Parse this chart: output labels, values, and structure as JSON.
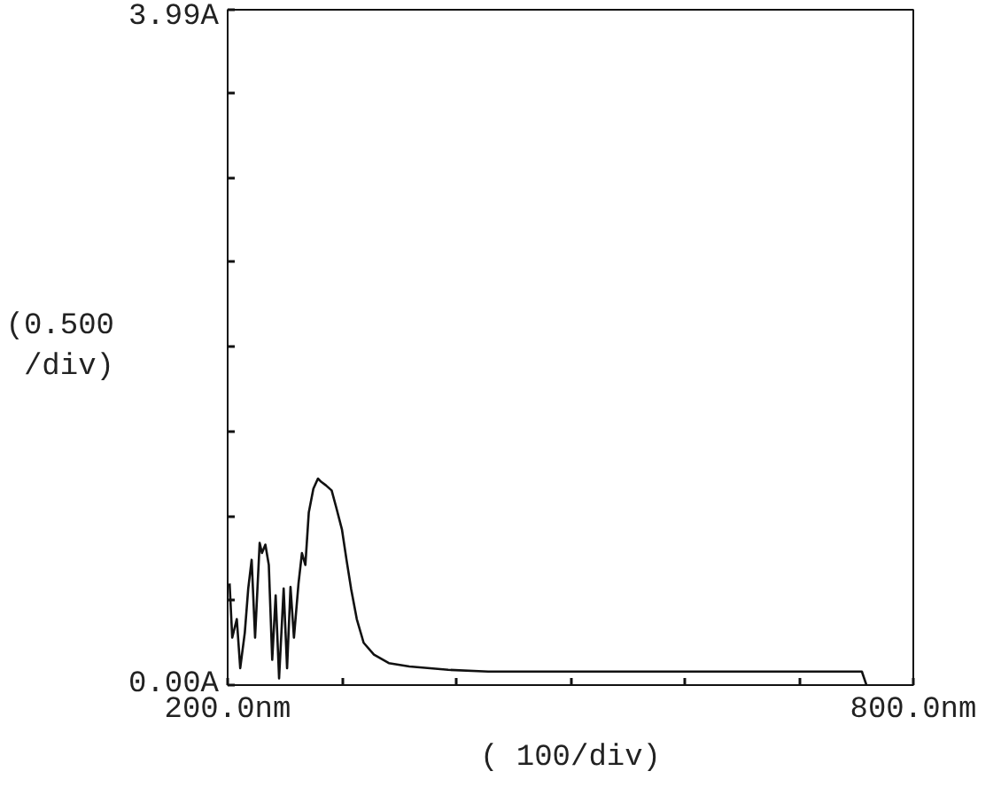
{
  "chart_data": {
    "type": "line",
    "xlabel": "( 100/div)",
    "ylabel": "(0.500 /div)",
    "xlim": [
      200,
      800
    ],
    "ylim": [
      0,
      3.99
    ],
    "xticks": [
      {
        "value": 200,
        "label": "200.0nm"
      },
      {
        "value": 300,
        "label": null
      },
      {
        "value": 400,
        "label": null
      },
      {
        "value": 500,
        "label": null
      },
      {
        "value": 600,
        "label": null
      },
      {
        "value": 700,
        "label": null
      },
      {
        "value": 800,
        "label": "800.0nm"
      }
    ],
    "yticks": [
      {
        "value": 0,
        "label": "0.00A"
      },
      {
        "value": 0.5,
        "label": null
      },
      {
        "value": 1,
        "label": null
      },
      {
        "value": 1.5,
        "label": null
      },
      {
        "value": 2,
        "label": null
      },
      {
        "value": 2.5,
        "label": null
      },
      {
        "value": 3,
        "label": null
      },
      {
        "value": 3.5,
        "label": null
      },
      {
        "value": 3.99,
        "label": "3.99A"
      }
    ],
    "grid": false,
    "series": [
      {
        "color": "#111111",
        "x": [
          201.7,
          204,
          208,
          211,
          215,
          218,
          221,
          224,
          228,
          230,
          233,
          236,
          239,
          242,
          245,
          249,
          252,
          255,
          258,
          262,
          265,
          268,
          271,
          275,
          279,
          282,
          286,
          291,
          295,
          300,
          304,
          308,
          313,
          319,
          328,
          341,
          359,
          393,
          428,
          500,
          600,
          700,
          755,
          759
        ],
        "values": [
          0.6,
          0.28,
          0.39,
          0.1,
          0.31,
          0.57,
          0.74,
          0.28,
          0.84,
          0.78,
          0.83,
          0.71,
          0.15,
          0.53,
          0.04,
          0.57,
          0.1,
          0.58,
          0.28,
          0.6,
          0.78,
          0.71,
          1.02,
          1.16,
          1.22,
          1.2,
          1.18,
          1.15,
          1.05,
          0.92,
          0.74,
          0.57,
          0.39,
          0.25,
          0.18,
          0.13,
          0.11,
          0.09,
          0.08,
          0.08,
          0.08,
          0.08,
          0.08,
          0
        ]
      }
    ]
  }
}
